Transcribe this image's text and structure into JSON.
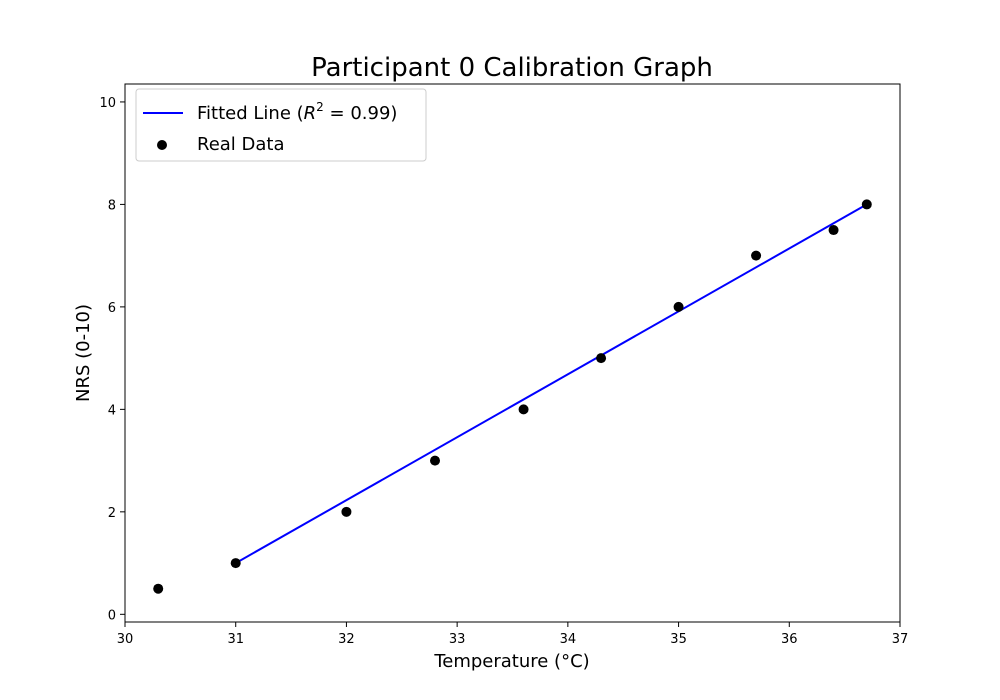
{
  "chart_data": {
    "type": "scatter",
    "title": "Participant 0 Calibration Graph",
    "xlabel": "Temperature (°C)",
    "ylabel": "NRS (0-10)",
    "xlim": [
      30.0,
      37.0
    ],
    "ylim": [
      -0.15,
      10.35
    ],
    "xticks": [
      30,
      31,
      32,
      33,
      34,
      35,
      36,
      37
    ],
    "yticks": [
      0,
      2,
      4,
      6,
      8,
      10
    ],
    "grid": false,
    "legend_position": "top-left",
    "series": [
      {
        "name": "Real Data",
        "kind": "scatter",
        "color": "#000000",
        "x": [
          30.3,
          31.0,
          32.0,
          32.8,
          33.6,
          34.3,
          35.0,
          35.7,
          36.4,
          36.7
        ],
        "y": [
          0.5,
          1.0,
          2.0,
          3.0,
          4.0,
          5.0,
          6.0,
          7.0,
          7.5,
          8.0
        ]
      },
      {
        "name_prefix": "Fitted Line (",
        "name_math": "R",
        "name_sup": "2",
        "name_suffix": " = 0.99)",
        "kind": "line",
        "color": "#0000ff",
        "x": [
          31.0,
          36.7
        ],
        "y": [
          1.0,
          8.0
        ]
      }
    ]
  }
}
